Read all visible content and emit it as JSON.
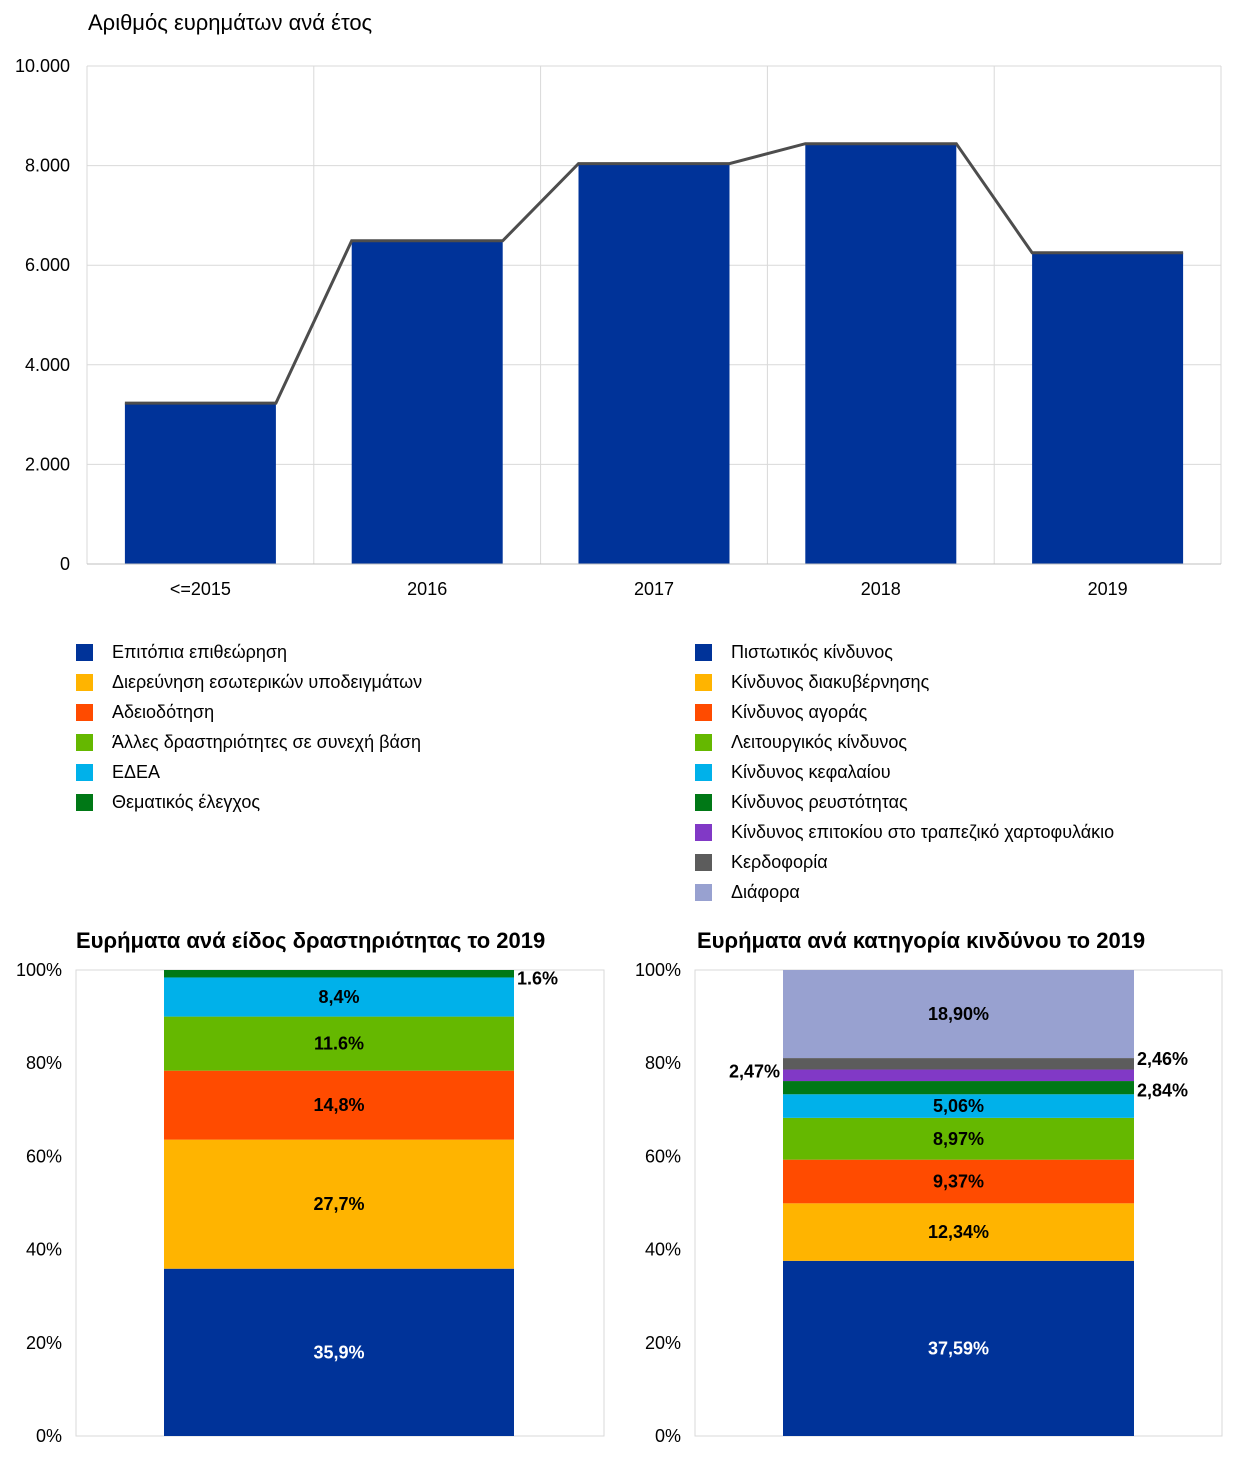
{
  "colors": {
    "grid": "#d9d9d9",
    "axis": "#bfbfbf",
    "bar": "#003399",
    "line": "#4d4d4d"
  },
  "chart_data": [
    {
      "type": "bar",
      "title": "Αριθμός ευρημάτων ανά έτος",
      "categories": [
        "<=2015",
        "2016",
        "2017",
        "2018",
        "2019"
      ],
      "values": [
        3230,
        6490,
        8040,
        8440,
        6250
      ],
      "y_ticks": [
        "0",
        "2.000",
        "4.000",
        "6.000",
        "8.000",
        "10.000"
      ],
      "ylim": [
        0,
        10000
      ],
      "grid": true,
      "overlay": "line"
    },
    {
      "type": "stacked-bar",
      "title": "Ευρήματα ανά είδος δραστηριότητας το 2019",
      "y_ticks": [
        "0%",
        "20%",
        "40%",
        "60%",
        "80%",
        "100%"
      ],
      "ylim": [
        0,
        100
      ],
      "segments": [
        {
          "name": "Επιτόπια επιθεώρηση",
          "value": 35.9,
          "label": "35,9%",
          "color": "#003399",
          "label_color": "#ffffff"
        },
        {
          "name": "Διερεύνηση εσωτερικών υποδειγμάτων",
          "value": 27.7,
          "label": "27,7%",
          "color": "#ffb400",
          "label_color": "#000000"
        },
        {
          "name": "Αδειοδότηση",
          "value": 14.8,
          "label": "14,8%",
          "color": "#ff4b00",
          "label_color": "#000000"
        },
        {
          "name": "Άλλες δραστηριότητες σε συνεχή βάση",
          "value": 11.6,
          "label": "11.6%",
          "color": "#65b800",
          "label_color": "#000000"
        },
        {
          "name": "ΕΔΕΑ",
          "value": 8.4,
          "label": "8,4%",
          "color": "#00b1ea",
          "label_color": "#000000"
        },
        {
          "name": "Θεματικός έλεγχος",
          "value": 1.6,
          "label": "1.6%",
          "color": "#007816",
          "label_color": "#000000",
          "label_side": "right"
        }
      ]
    },
    {
      "type": "stacked-bar",
      "title": "Ευρήματα ανά κατηγορία κινδύνου το 2019",
      "y_ticks": [
        "0%",
        "20%",
        "40%",
        "60%",
        "80%",
        "100%"
      ],
      "ylim": [
        0,
        100
      ],
      "segments": [
        {
          "name": "Πιστωτικός κίνδυνος",
          "value": 37.59,
          "label": "37,59%",
          "color": "#003399",
          "label_color": "#ffffff"
        },
        {
          "name": "Κίνδυνος διακυβέρνησης",
          "value": 12.34,
          "label": "12,34%",
          "color": "#ffb400",
          "label_color": "#000000"
        },
        {
          "name": "Κίνδυνος αγοράς",
          "value": 9.37,
          "label": "9,37%",
          "color": "#ff4b00",
          "label_color": "#000000"
        },
        {
          "name": "Λειτουργικός κίνδυνος",
          "value": 8.97,
          "label": "8,97%",
          "color": "#65b800",
          "label_color": "#000000"
        },
        {
          "name": "Κίνδυνος κεφαλαίου",
          "value": 5.06,
          "label": "5,06%",
          "color": "#00b1ea",
          "label_color": "#000000"
        },
        {
          "name": "Κίνδυνος ρευστότητας",
          "value": 2.84,
          "label": "2,84%",
          "color": "#007816",
          "label_color": "#000000",
          "label_side": "right"
        },
        {
          "name": "Κίνδυνος επιτοκίου στο τραπεζικό χαρτοφυλάκιο",
          "value": 2.47,
          "label": "2,47%",
          "color": "#8139c6",
          "label_color": "#000000",
          "label_side": "left"
        },
        {
          "name": "Κερδοφορία",
          "value": 2.46,
          "label": "2,46%",
          "color": "#5c5c5c",
          "label_color": "#000000",
          "label_side": "right"
        },
        {
          "name": "Διάφορα",
          "value": 18.9,
          "label": "18,90%",
          "color": "#98a1d0",
          "label_color": "#000000"
        }
      ]
    }
  ]
}
